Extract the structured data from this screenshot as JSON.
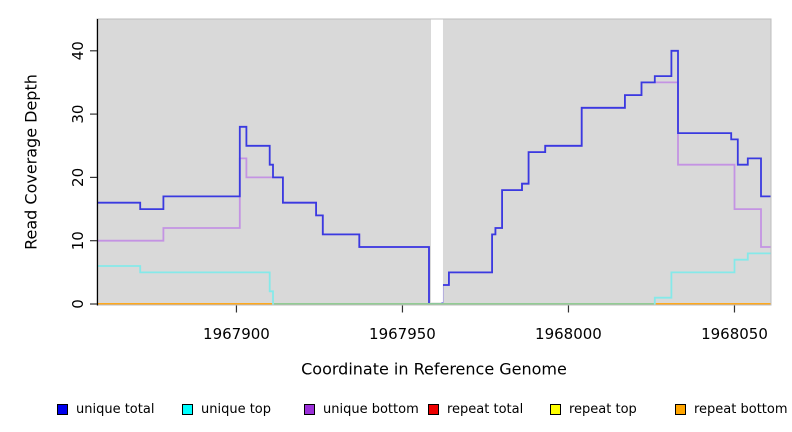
{
  "figure": {
    "background": "#ffffff",
    "panel_background": "#d9d9d9",
    "panel_border": "#bdbdbd",
    "axis_color": "#000000",
    "tick_color": "#333333",
    "tick_label_color": "#000000"
  },
  "chart_data": {
    "type": "line",
    "style": "step",
    "title": "",
    "xlabel": "Coordinate in Reference Genome",
    "ylabel": "Read Coverage Depth",
    "x_range": [
      1967858,
      1968061
    ],
    "y_range": [
      0,
      45
    ],
    "x_ticks": [
      1967900,
      1967950,
      1968000,
      1968050
    ],
    "y_ticks": [
      0,
      10,
      20,
      30,
      40
    ],
    "grid": false,
    "legend_position": "bottom",
    "masked_region": {
      "x_start": 1967958.6,
      "x_end": 1967962.2,
      "color": "#ffffff"
    },
    "zero_line": {
      "blend_range": [
        1967911.3,
        1968025.7
      ],
      "blend_color": "#8fca8f",
      "note": "unique top sits at 0 here and blends with the repeat lines"
    },
    "series": [
      {
        "name": "repeat total",
        "color": "#ee0000",
        "steps": [
          [
            1967858,
            0
          ]
        ]
      },
      {
        "name": "repeat top",
        "color": "#ffff00",
        "steps": [
          [
            1967858,
            0
          ]
        ]
      },
      {
        "name": "repeat bottom",
        "color": "#ffa41f",
        "steps": [
          [
            1967858,
            0
          ]
        ]
      },
      {
        "name": "unique bottom",
        "color": "#c493e3",
        "steps": [
          [
            1967858,
            10
          ],
          [
            1967878,
            12
          ],
          [
            1967901,
            23
          ],
          [
            1967903,
            20
          ],
          [
            1967914,
            16
          ],
          [
            1967924,
            14
          ],
          [
            1967926,
            11
          ],
          [
            1967937,
            9
          ],
          [
            1967958,
            0
          ],
          [
            1967962,
            3
          ],
          [
            1967964,
            5
          ],
          [
            1967977,
            11
          ],
          [
            1967978,
            12
          ],
          [
            1967980,
            18
          ],
          [
            1967986,
            19
          ],
          [
            1967988,
            24
          ],
          [
            1967993,
            25
          ],
          [
            1968004,
            31
          ],
          [
            1968017,
            33
          ],
          [
            1968022,
            35
          ],
          [
            1968033,
            22
          ],
          [
            1968050,
            15
          ],
          [
            1968058,
            9
          ]
        ]
      },
      {
        "name": "unique total",
        "color": "#3a3ae0",
        "steps": [
          [
            1967858,
            16
          ],
          [
            1967871,
            15
          ],
          [
            1967878,
            17
          ],
          [
            1967901,
            28
          ],
          [
            1967903,
            25
          ],
          [
            1967910,
            22
          ],
          [
            1967911,
            20
          ],
          [
            1967914,
            16
          ],
          [
            1967924,
            14
          ],
          [
            1967926,
            11
          ],
          [
            1967937,
            9
          ],
          [
            1967958,
            0
          ],
          [
            1967962,
            3
          ],
          [
            1967964,
            5
          ],
          [
            1967977,
            11
          ],
          [
            1967978,
            12
          ],
          [
            1967980,
            18
          ],
          [
            1967986,
            19
          ],
          [
            1967988,
            24
          ],
          [
            1967993,
            25
          ],
          [
            1968004,
            31
          ],
          [
            1968017,
            33
          ],
          [
            1968022,
            35
          ],
          [
            1968026,
            36
          ],
          [
            1968031,
            40
          ],
          [
            1968033,
            27
          ],
          [
            1968049,
            26
          ],
          [
            1968051,
            22
          ],
          [
            1968054,
            23
          ],
          [
            1968058,
            17
          ]
        ]
      },
      {
        "name": "unique top",
        "color": "#85e9e9",
        "steps": [
          [
            1967858,
            6
          ],
          [
            1967871,
            5
          ],
          [
            1967910,
            2
          ],
          [
            1967911,
            0
          ],
          [
            1968026,
            1
          ],
          [
            1968031,
            5
          ],
          [
            1968050,
            7
          ],
          [
            1968054,
            8
          ]
        ]
      }
    ],
    "legend": [
      {
        "label": "unique total",
        "color": "#0000ee"
      },
      {
        "label": "unique top",
        "color": "#00ffff"
      },
      {
        "label": "unique bottom",
        "color": "#9b30d9"
      },
      {
        "label": "repeat total",
        "color": "#ee0000"
      },
      {
        "label": "repeat top",
        "color": "#ffff00"
      },
      {
        "label": "repeat bottom",
        "color": "#ffa500"
      }
    ]
  },
  "layout": {
    "legend_lefts": [
      57,
      182,
      304,
      428,
      550,
      675
    ]
  }
}
